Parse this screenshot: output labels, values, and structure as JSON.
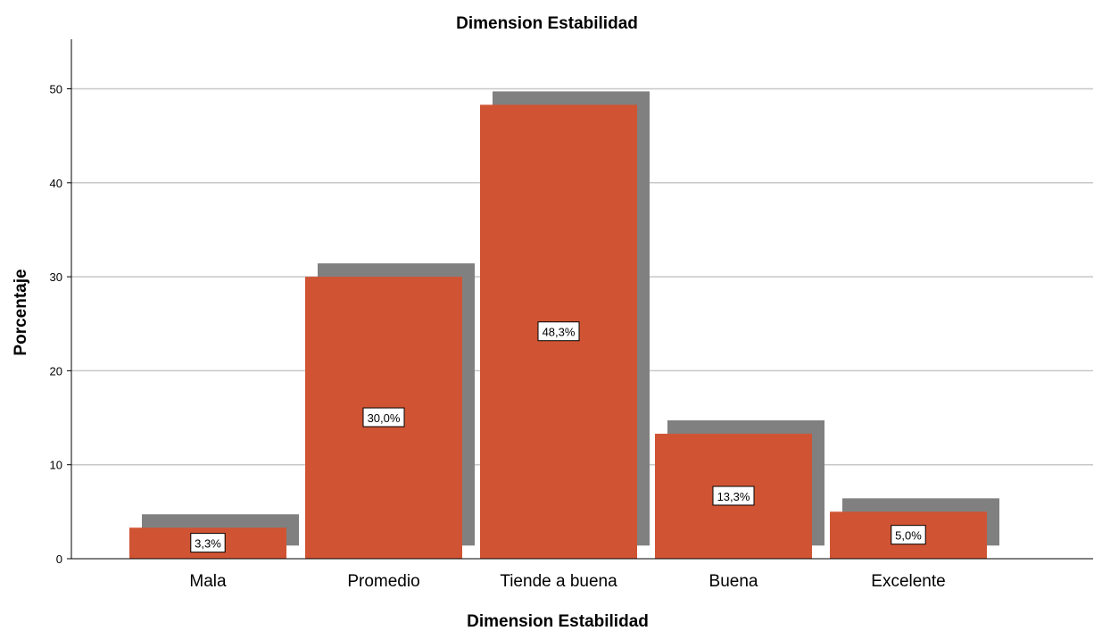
{
  "chart_data": {
    "type": "bar",
    "title": "Dimension Estabilidad",
    "xlabel": "Dimension Estabilidad",
    "ylabel": "Porcentaje",
    "categories": [
      "Mala",
      "Promedio",
      "Tiende a buena",
      "Buena",
      "Excelente"
    ],
    "values": [
      3.3,
      30.0,
      48.3,
      13.3,
      5.0
    ],
    "data_labels": [
      "3,3%",
      "30,0%",
      "48,3%",
      "13,3%",
      "5,0%"
    ],
    "ylim": [
      0,
      55
    ],
    "yticks": [
      0,
      10,
      20,
      30,
      40,
      50
    ],
    "grid": true,
    "legend": "none",
    "colors": {
      "bar": "#d05433",
      "shadow": "#808080",
      "grid": "#c8c8c8",
      "axis": "#000000"
    }
  }
}
